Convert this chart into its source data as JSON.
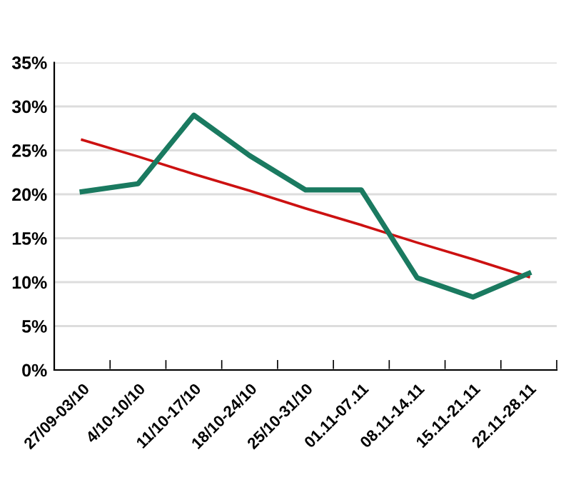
{
  "chart_data": {
    "type": "line",
    "categories": [
      "27/09-03/10",
      "4/10-10/10",
      "11/10-17/10",
      "18/10-24/10",
      "25/10-31/10",
      "01.11-07.11",
      "08.11-14.11",
      "15.11-21.11",
      "22.11-28.11"
    ],
    "series": [
      {
        "color": "#1a7a60",
        "values": [
          20.3,
          21.2,
          29.0,
          24.4,
          20.5,
          20.5,
          10.5,
          8.3,
          11.0
        ]
      },
      {
        "color": "#cc1111",
        "values": [
          26.2,
          24.3,
          22.3,
          20.4,
          18.4,
          16.5,
          14.5,
          12.6,
          10.6
        ]
      }
    ],
    "ylim": [
      0,
      35
    ],
    "yticks": [
      {
        "value": 0,
        "label": "0%"
      },
      {
        "value": 5,
        "label": "5%"
      },
      {
        "value": 10,
        "label": "10%"
      },
      {
        "value": 15,
        "label": "15%"
      },
      {
        "value": 20,
        "label": "20%"
      },
      {
        "value": 25,
        "label": "25%"
      },
      {
        "value": 30,
        "label": "30%"
      },
      {
        "value": 35,
        "label": "35%"
      }
    ],
    "grid": "y",
    "legend": false,
    "marker": "none"
  }
}
